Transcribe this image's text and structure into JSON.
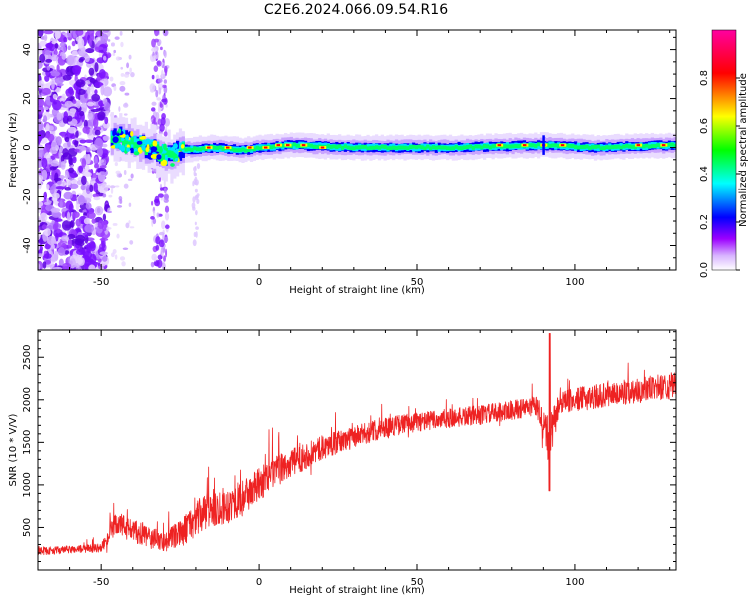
{
  "title": "C2E6.2024.066.09.54.R16",
  "chart_data": [
    {
      "type": "heatmap",
      "name": "spectrogram",
      "title": "C2E6.2024.066.09.54.R16",
      "xlabel": "Height of straight line (km)",
      "ylabel": "Frequency (Hz)",
      "xlim": [
        -70,
        132
      ],
      "ylim": [
        -50,
        48
      ],
      "xticks": [
        -50,
        0,
        50,
        100
      ],
      "yticks": [
        -40,
        -20,
        0,
        20,
        40
      ],
      "signal_band": [
        {
          "x": -46,
          "f": 4
        },
        {
          "x": -40,
          "f": 2
        },
        {
          "x": -34,
          "f": -1
        },
        {
          "x": -28,
          "f": -4
        },
        {
          "x": -25,
          "f": -1
        },
        {
          "x": -15,
          "f": 0
        },
        {
          "x": -5,
          "f": -1
        },
        {
          "x": 0,
          "f": 0
        },
        {
          "x": 10,
          "f": 1
        },
        {
          "x": 30,
          "f": 0
        },
        {
          "x": 60,
          "f": 0
        },
        {
          "x": 90,
          "f": 1
        },
        {
          "x": 105,
          "f": 0
        },
        {
          "x": 132,
          "f": 1
        }
      ],
      "colorbar": {
        "label": "Normalized spectral amplitude",
        "range": [
          0,
          1
        ],
        "ticks": [
          "0.0",
          "0.2",
          "0.4",
          "0.6",
          "0.8"
        ],
        "colors": [
          "#ffffff",
          "#9c00ff",
          "#0000ff",
          "#00ffff",
          "#00ff00",
          "#ffff00",
          "#ff0000",
          "#ff00a0"
        ]
      }
    },
    {
      "type": "line",
      "name": "snr",
      "xlabel": "Height of straight line (km)",
      "ylabel": "SNR (10 * V/V)",
      "xlim": [
        -70,
        132
      ],
      "ylim": [
        0,
        2820
      ],
      "xticks": [
        -50,
        0,
        50,
        100
      ],
      "yticks": [
        500,
        1000,
        1500,
        2000,
        2500
      ],
      "color": "#ee2222",
      "series": [
        {
          "name": "SNR",
          "x": [
            -70,
            -60,
            -50,
            -45,
            -40,
            -35,
            -30,
            -25,
            -20,
            -15,
            -10,
            -5,
            0,
            5,
            10,
            20,
            30,
            40,
            50,
            60,
            70,
            80,
            88,
            92,
            95,
            100,
            110,
            120,
            132
          ],
          "y": [
            220,
            240,
            260,
            550,
            460,
            380,
            330,
            420,
            600,
            720,
            760,
            850,
            1000,
            1150,
            1250,
            1440,
            1560,
            1680,
            1740,
            1780,
            1820,
            1880,
            1920,
            1500,
            1960,
            2000,
            2060,
            2110,
            2180
          ],
          "spread": [
            90,
            90,
            100,
            300,
            280,
            260,
            240,
            320,
            420,
            450,
            430,
            420,
            400,
            360,
            340,
            280,
            260,
            240,
            230,
            230,
            230,
            230,
            240,
            600,
            260,
            280,
            290,
            300,
            310
          ]
        }
      ]
    }
  ]
}
